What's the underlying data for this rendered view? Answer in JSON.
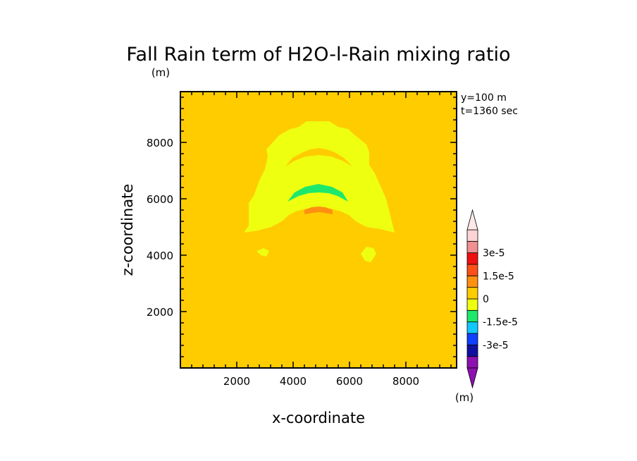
{
  "chart_data": {
    "type": "heatmap",
    "title": "Fall Rain term of H2O-l-Rain mixing ratio",
    "title_units": "(m)",
    "xlabel": "x-coordinate",
    "ylabel": "z-coordinate",
    "xlim": [
      0,
      9800
    ],
    "ylim": [
      0,
      9800
    ],
    "x_ticks": [
      2000,
      4000,
      6000,
      8000
    ],
    "y_ticks": [
      2000,
      4000,
      6000,
      8000
    ],
    "annotations": [
      "y=100 m",
      "t=1360 sec"
    ],
    "background_value": 0,
    "colorbar": {
      "units": "(m)",
      "levels": [
        -3e-05,
        -2.25e-05,
        -1.5e-05,
        -7.5e-06,
        0,
        7.5e-06,
        1.5e-05,
        2.25e-05,
        3e-05
      ],
      "colors": [
        "#8d10b0",
        "#1010a0",
        "#1040ff",
        "#10c8ff",
        "#1ee86b",
        "#eeff10",
        "#ffcc00",
        "#ff9010",
        "#ff5018",
        "#ee1010",
        "#f09090",
        "#ffd4d4"
      ],
      "tick_labels": [
        "3e-5",
        "1.5e-5",
        "0",
        "-1.5e-5",
        "-3e-5"
      ]
    },
    "regions": [
      {
        "name": "weak-positive-band",
        "value": 5e-06,
        "color": "#eeff10"
      },
      {
        "name": "negative-band",
        "value": -7.5e-06,
        "color": "#1ee86b"
      },
      {
        "name": "positive-core",
        "value": 2e-05,
        "color": "#ff9010"
      }
    ]
  }
}
